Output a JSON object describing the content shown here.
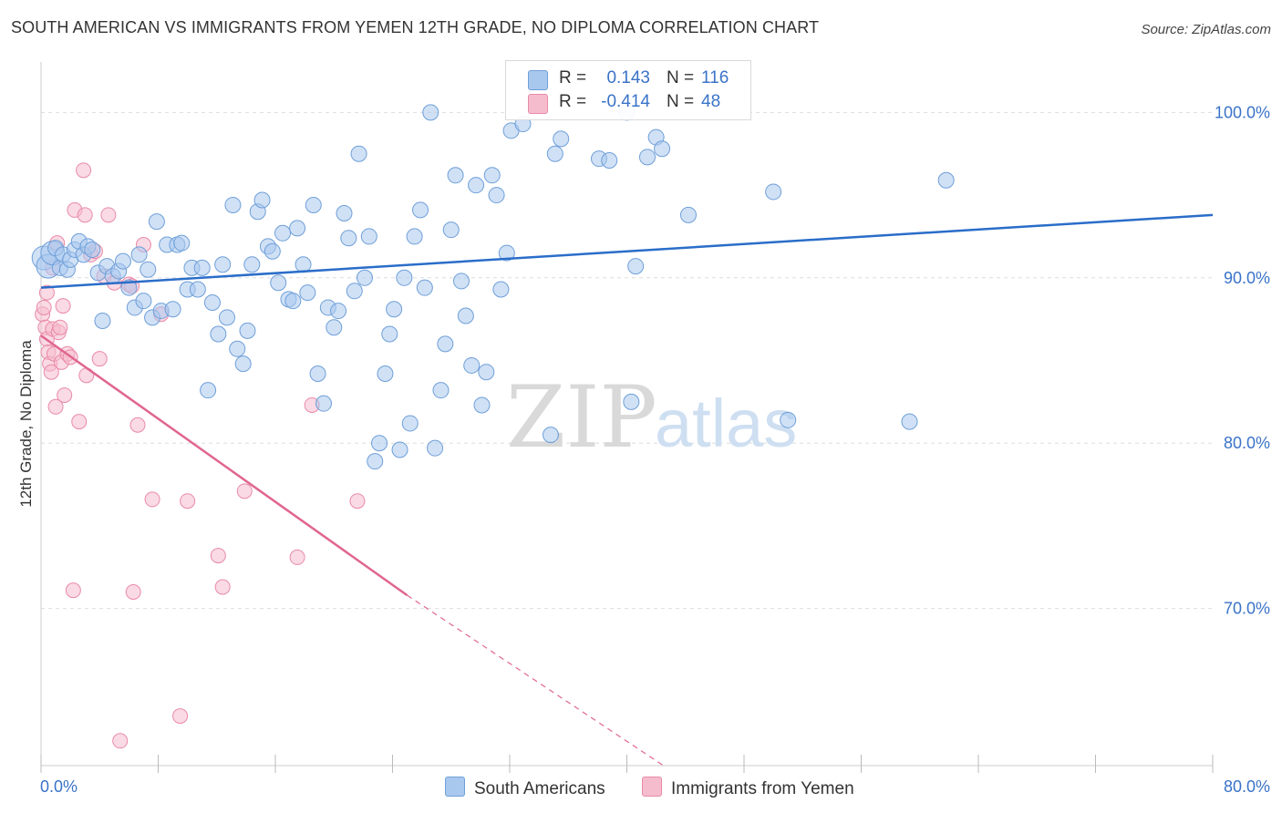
{
  "header": {
    "title": "SOUTH AMERICAN VS IMMIGRANTS FROM YEMEN 12TH GRADE, NO DIPLOMA CORRELATION CHART",
    "source": "Source: ZipAtlas.com"
  },
  "watermark": {
    "zip": "ZIP",
    "atlas": "atlas"
  },
  "legend": {
    "rows": [
      {
        "r_label": "R =",
        "r_value": "0.143",
        "n_label": "N =",
        "n_value": "116"
      },
      {
        "r_label": "R =",
        "r_value": "-0.414",
        "n_label": "N =",
        "n_value": "48"
      }
    ]
  },
  "bottom_legend": {
    "series1": "South Americans",
    "series2": "Immigrants from Yemen"
  },
  "colors": {
    "blue_fill": "#a9c8ee",
    "blue_stroke": "#6f9fd8",
    "blue_line": "#2a6dc9",
    "pink_fill": "#f5bccd",
    "pink_stroke": "#e98aa8",
    "pink_line": "#e0668f",
    "tick_text": "#3a73c8",
    "grid": "#dddddd"
  },
  "chart_data": {
    "type": "scatter",
    "title": "SOUTH AMERICAN VS IMMIGRANTS FROM YEMEN 12TH GRADE, NO DIPLOMA CORRELATION CHART",
    "xlabel": "",
    "ylabel": "12th Grade, No Diploma",
    "xlim": [
      0,
      80
    ],
    "ylim": [
      60.5,
      102.5
    ],
    "x_tick_labels": [
      "0.0%",
      "80.0%"
    ],
    "y_ticks": [
      70,
      80,
      90,
      100
    ],
    "y_tick_labels": [
      "70.0%",
      "80.0%",
      "90.0%",
      "100.0%"
    ],
    "grid": true,
    "legend_position": "top-center",
    "series": [
      {
        "name": "South Americans",
        "R": 0.143,
        "N": 116,
        "trend": {
          "x": [
            0,
            80
          ],
          "y": [
            89.4,
            93.8
          ]
        },
        "points": [
          [
            0.2,
            91.2
          ],
          [
            0.5,
            90.7
          ],
          [
            0.8,
            91.5
          ],
          [
            1.0,
            91.8
          ],
          [
            1.3,
            90.6
          ],
          [
            1.5,
            91.4
          ],
          [
            1.8,
            90.5
          ],
          [
            2.0,
            91.1
          ],
          [
            2.3,
            91.7
          ],
          [
            2.6,
            92.2
          ],
          [
            2.9,
            91.4
          ],
          [
            3.2,
            91.9
          ],
          [
            3.5,
            91.7
          ],
          [
            3.9,
            90.3
          ],
          [
            4.2,
            87.4
          ],
          [
            4.5,
            90.7
          ],
          [
            4.9,
            90.1
          ],
          [
            5.3,
            90.4
          ],
          [
            5.6,
            91.0
          ],
          [
            6.0,
            89.4
          ],
          [
            6.4,
            88.2
          ],
          [
            6.7,
            91.4
          ],
          [
            7.0,
            88.6
          ],
          [
            7.3,
            90.5
          ],
          [
            7.6,
            87.6
          ],
          [
            7.9,
            93.4
          ],
          [
            8.2,
            88.0
          ],
          [
            8.6,
            92.0
          ],
          [
            9.0,
            88.1
          ],
          [
            9.3,
            92.0
          ],
          [
            9.6,
            92.1
          ],
          [
            10.0,
            89.3
          ],
          [
            10.3,
            90.6
          ],
          [
            10.7,
            89.3
          ],
          [
            11.0,
            90.6
          ],
          [
            11.4,
            83.2
          ],
          [
            11.7,
            88.5
          ],
          [
            12.1,
            86.6
          ],
          [
            12.4,
            90.8
          ],
          [
            12.7,
            87.6
          ],
          [
            13.1,
            94.4
          ],
          [
            13.4,
            85.7
          ],
          [
            13.8,
            84.8
          ],
          [
            14.1,
            86.8
          ],
          [
            14.4,
            90.8
          ],
          [
            14.8,
            94.0
          ],
          [
            15.1,
            94.7
          ],
          [
            15.5,
            91.9
          ],
          [
            15.8,
            91.6
          ],
          [
            16.2,
            89.7
          ],
          [
            16.5,
            92.7
          ],
          [
            16.9,
            88.7
          ],
          [
            17.2,
            88.6
          ],
          [
            17.5,
            93.0
          ],
          [
            17.9,
            90.8
          ],
          [
            18.2,
            89.1
          ],
          [
            18.6,
            94.4
          ],
          [
            18.9,
            84.2
          ],
          [
            19.3,
            82.4
          ],
          [
            19.6,
            88.2
          ],
          [
            20.0,
            87.0
          ],
          [
            20.3,
            88.0
          ],
          [
            20.7,
            93.9
          ],
          [
            21.0,
            92.4
          ],
          [
            21.4,
            89.2
          ],
          [
            21.7,
            97.5
          ],
          [
            22.1,
            90.0
          ],
          [
            22.4,
            92.5
          ],
          [
            22.8,
            78.9
          ],
          [
            23.1,
            80.0
          ],
          [
            23.5,
            84.2
          ],
          [
            23.8,
            86.6
          ],
          [
            24.1,
            88.1
          ],
          [
            24.5,
            79.6
          ],
          [
            24.8,
            90.0
          ],
          [
            25.2,
            81.2
          ],
          [
            25.5,
            92.5
          ],
          [
            25.9,
            94.1
          ],
          [
            26.2,
            89.4
          ],
          [
            26.6,
            100.0
          ],
          [
            26.9,
            79.7
          ],
          [
            27.3,
            83.2
          ],
          [
            27.6,
            86.0
          ],
          [
            28.0,
            92.9
          ],
          [
            28.3,
            96.2
          ],
          [
            28.7,
            89.8
          ],
          [
            29.0,
            87.7
          ],
          [
            29.4,
            84.7
          ],
          [
            29.7,
            95.6
          ],
          [
            30.1,
            82.3
          ],
          [
            30.4,
            84.3
          ],
          [
            30.8,
            96.2
          ],
          [
            31.1,
            95.0
          ],
          [
            31.4,
            89.3
          ],
          [
            31.8,
            91.5
          ],
          [
            32.1,
            98.9
          ],
          [
            32.9,
            99.3
          ],
          [
            34.8,
            80.5
          ],
          [
            35.1,
            97.5
          ],
          [
            35.5,
            98.4
          ],
          [
            38.1,
            97.2
          ],
          [
            38.8,
            97.1
          ],
          [
            40.0,
            100.0
          ],
          [
            40.3,
            82.5
          ],
          [
            40.6,
            90.7
          ],
          [
            41.4,
            97.3
          ],
          [
            42.0,
            98.5
          ],
          [
            42.4,
            97.8
          ],
          [
            44.2,
            93.8
          ],
          [
            50.0,
            95.2
          ],
          [
            51.0,
            81.4
          ],
          [
            59.3,
            81.3
          ],
          [
            61.8,
            95.9
          ]
        ]
      },
      {
        "name": "Immigrants from Yemen",
        "R": -0.414,
        "N": 48,
        "trend": {
          "x": [
            0,
            25
          ],
          "y": [
            86.5,
            70.8
          ]
        },
        "trend_dashed": {
          "x": [
            25,
            42.5
          ],
          "y": [
            70.8,
            60.5
          ]
        },
        "points": [
          [
            0.1,
            87.8
          ],
          [
            0.2,
            88.2
          ],
          [
            0.3,
            87.0
          ],
          [
            0.4,
            86.3
          ],
          [
            0.5,
            85.5
          ],
          [
            0.6,
            84.8
          ],
          [
            0.7,
            84.3
          ],
          [
            0.8,
            86.9
          ],
          [
            0.9,
            85.4
          ],
          [
            1.0,
            82.2
          ],
          [
            1.1,
            92.1
          ],
          [
            1.2,
            86.7
          ],
          [
            1.3,
            87.0
          ],
          [
            1.4,
            84.9
          ],
          [
            1.6,
            82.9
          ],
          [
            1.8,
            85.4
          ],
          [
            2.0,
            85.2
          ],
          [
            2.3,
            94.1
          ],
          [
            2.6,
            81.3
          ],
          [
            2.9,
            96.5
          ],
          [
            3.1,
            84.1
          ],
          [
            3.4,
            91.4
          ],
          [
            3.7,
            91.6
          ],
          [
            4.0,
            85.1
          ],
          [
            4.3,
            90.1
          ],
          [
            4.6,
            93.8
          ],
          [
            5.0,
            89.7
          ],
          [
            5.4,
            62.0
          ],
          [
            6.0,
            89.6
          ],
          [
            6.3,
            71.0
          ],
          [
            6.6,
            81.1
          ],
          [
            7.0,
            92.0
          ],
          [
            7.6,
            76.6
          ],
          [
            8.2,
            87.8
          ],
          [
            9.5,
            63.5
          ],
          [
            10.0,
            76.5
          ],
          [
            12.1,
            73.2
          ],
          [
            12.4,
            71.3
          ],
          [
            13.9,
            77.1
          ],
          [
            17.5,
            73.1
          ],
          [
            18.5,
            82.3
          ],
          [
            21.6,
            76.5
          ],
          [
            2.2,
            71.1
          ],
          [
            0.8,
            90.6
          ],
          [
            1.5,
            88.3
          ],
          [
            3.0,
            93.8
          ],
          [
            6.2,
            89.5
          ],
          [
            0.4,
            89.1
          ]
        ]
      }
    ]
  }
}
